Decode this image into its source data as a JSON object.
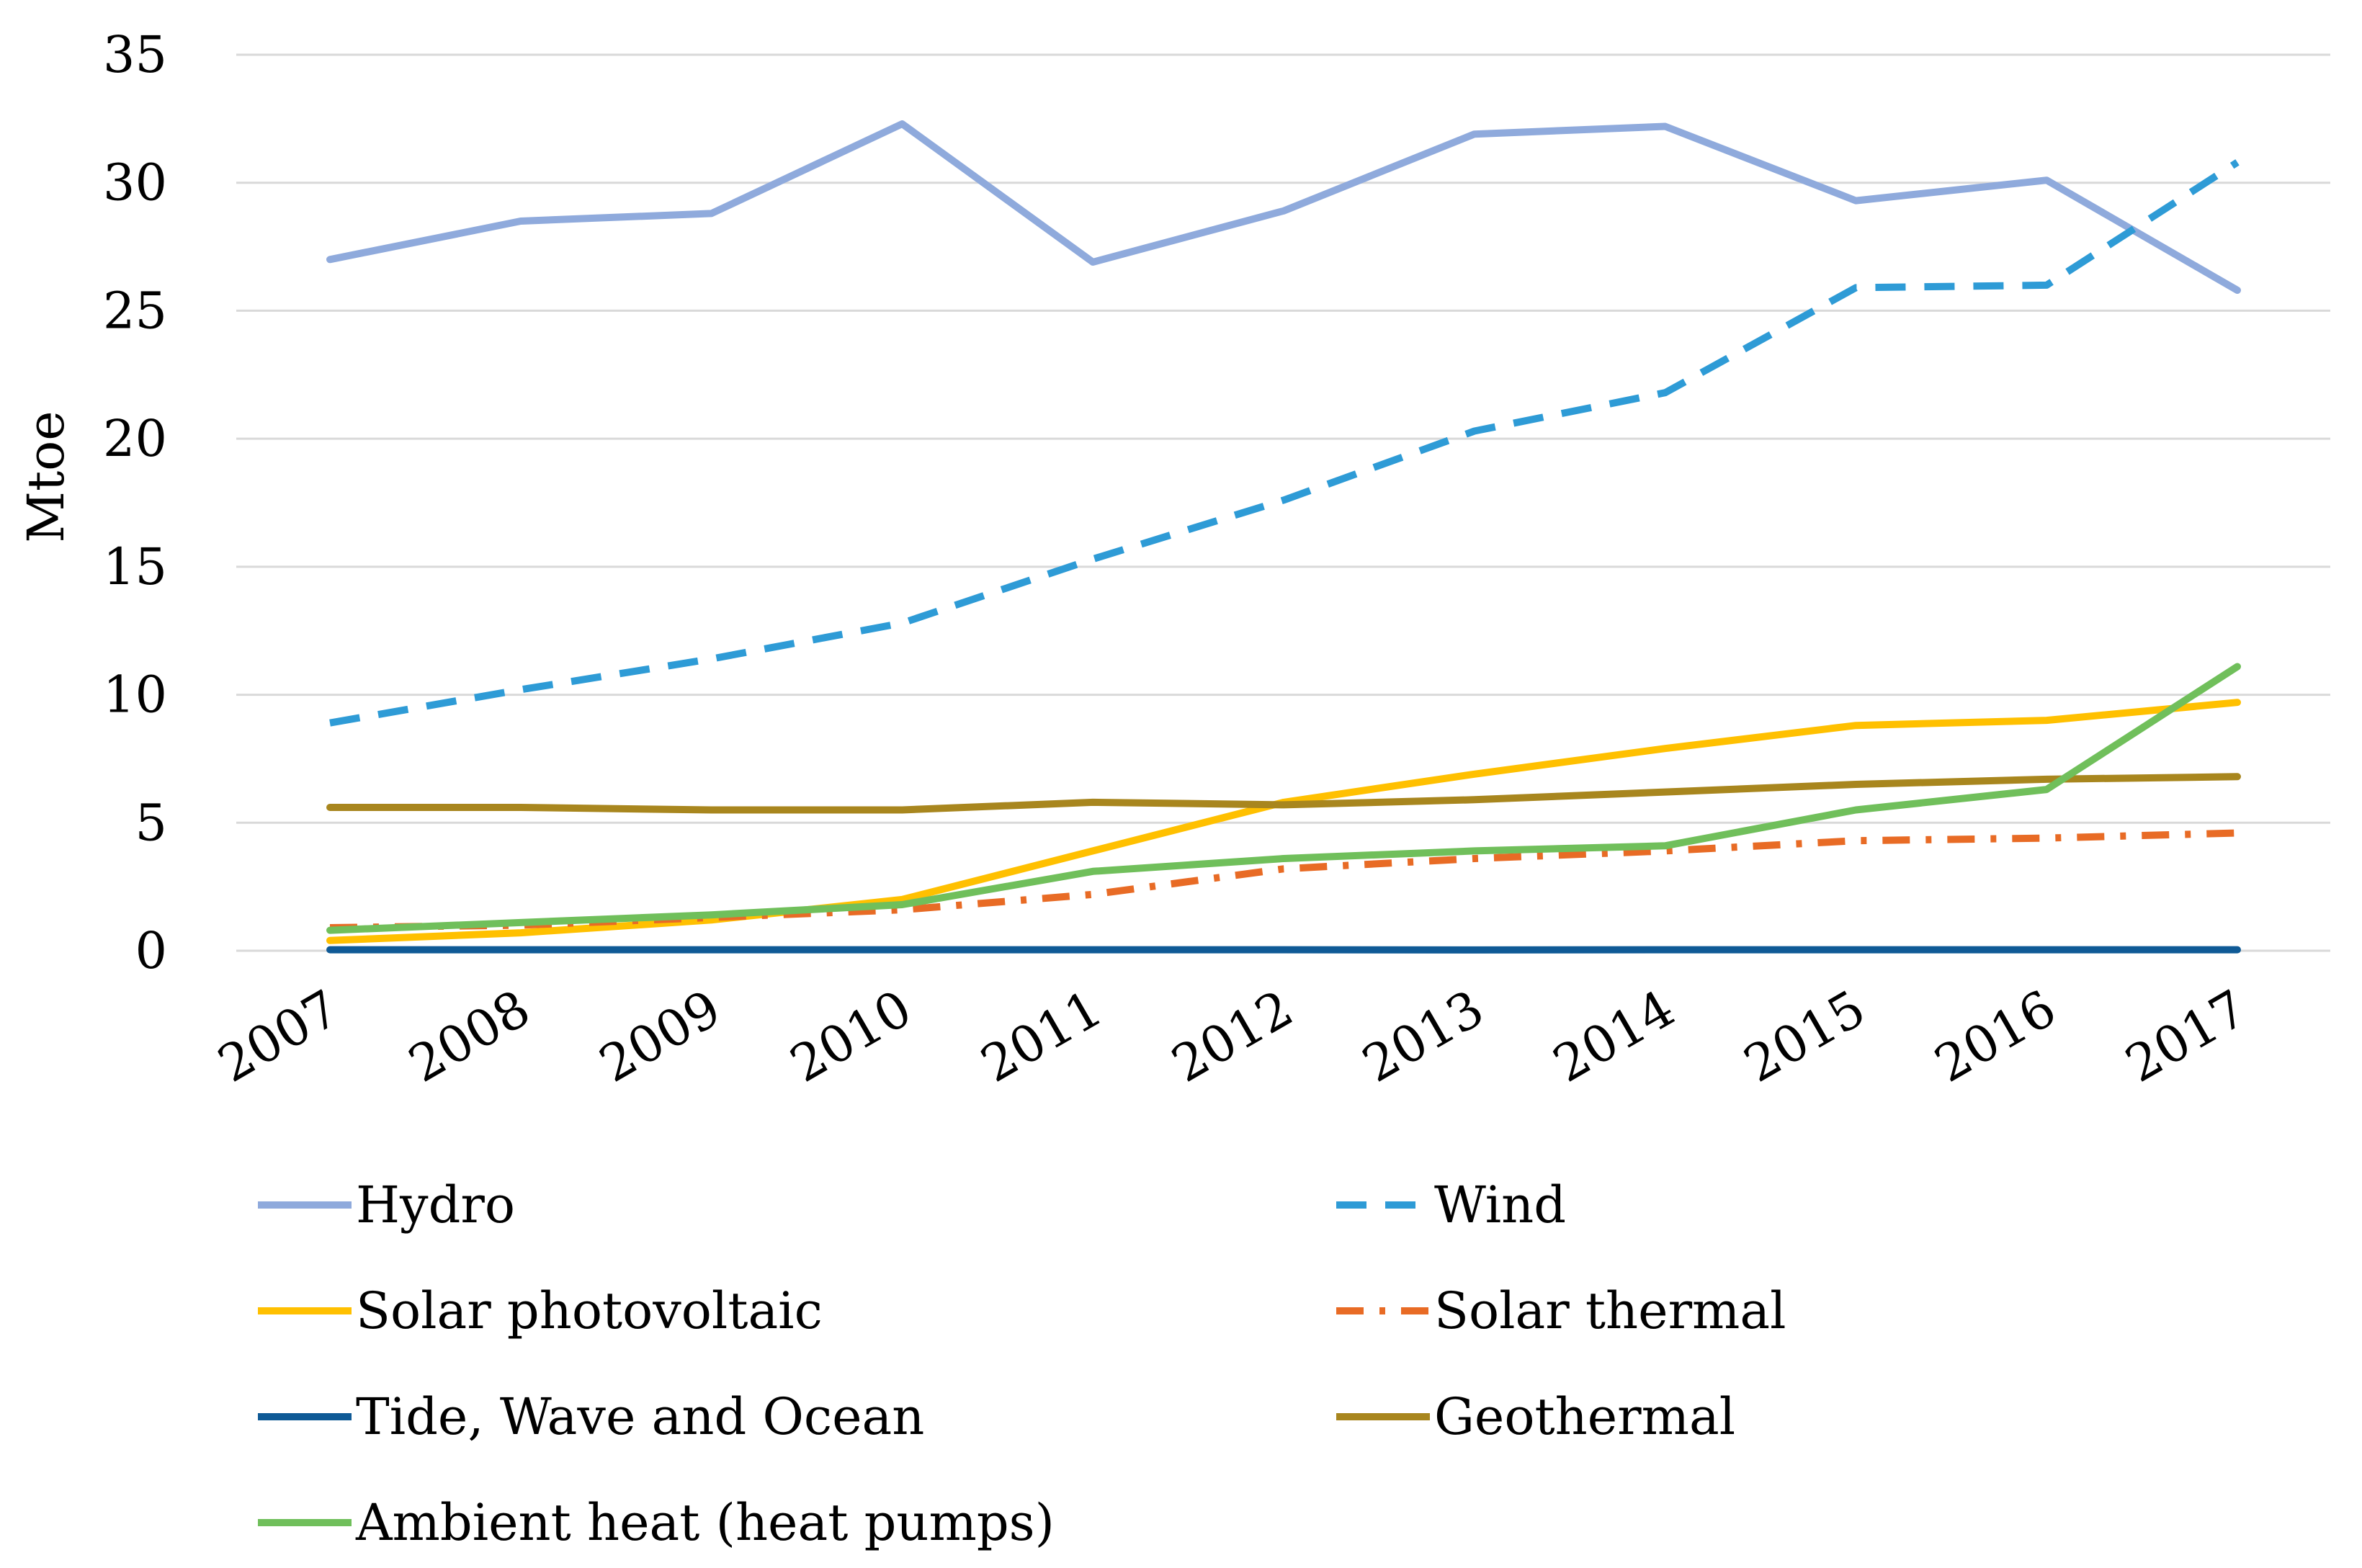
{
  "chart_data": {
    "type": "line",
    "title": "",
    "xlabel": "",
    "ylabel": "Mtoe",
    "ylim": [
      0,
      35
    ],
    "yticks": [
      0,
      5,
      10,
      15,
      20,
      25,
      30,
      35
    ],
    "grid": true,
    "legend_position": "bottom",
    "categories": [
      "2007",
      "2008",
      "2009",
      "2010",
      "2011",
      "2012",
      "2013",
      "2014",
      "2015",
      "2016",
      "2017"
    ],
    "series": [
      {
        "name": "Hydro",
        "color": "#8faadc",
        "dash": "solid",
        "values": [
          27.0,
          28.5,
          28.8,
          32.3,
          26.9,
          28.9,
          31.9,
          32.2,
          29.3,
          30.1,
          25.8
        ]
      },
      {
        "name": "Wind",
        "color": "#2e9bd6",
        "dash": "dash",
        "values": [
          8.9,
          10.2,
          11.4,
          12.8,
          15.3,
          17.6,
          20.3,
          21.8,
          25.9,
          26.0,
          30.8
        ]
      },
      {
        "name": "Solar photovoltaic",
        "color": "#ffc000",
        "dash": "solid",
        "values": [
          0.4,
          0.7,
          1.2,
          2.0,
          3.9,
          5.8,
          6.9,
          7.9,
          8.8,
          9.0,
          9.7
        ]
      },
      {
        "name": "Solar thermal",
        "color": "#e86b25",
        "dash": "dashdot",
        "values": [
          0.9,
          1.0,
          1.3,
          1.6,
          2.2,
          3.2,
          3.6,
          3.9,
          4.3,
          4.4,
          4.6
        ]
      },
      {
        "name": "Tide, Wave and Ocean",
        "color": "#0f5a96",
        "dash": "solid",
        "values": [
          0.04,
          0.04,
          0.04,
          0.04,
          0.04,
          0.04,
          0.03,
          0.04,
          0.04,
          0.04,
          0.04
        ]
      },
      {
        "name": "Geothermal",
        "color": "#a8861e",
        "dash": "solid",
        "values": [
          5.6,
          5.6,
          5.5,
          5.5,
          5.8,
          5.7,
          5.9,
          6.2,
          6.5,
          6.7,
          6.8
        ]
      },
      {
        "name": "Ambient heat (heat pumps)",
        "color": "#70bf5b",
        "dash": "solid",
        "values": [
          0.8,
          1.1,
          1.4,
          1.8,
          3.1,
          3.6,
          3.9,
          4.1,
          5.5,
          6.3,
          11.1
        ]
      }
    ]
  }
}
